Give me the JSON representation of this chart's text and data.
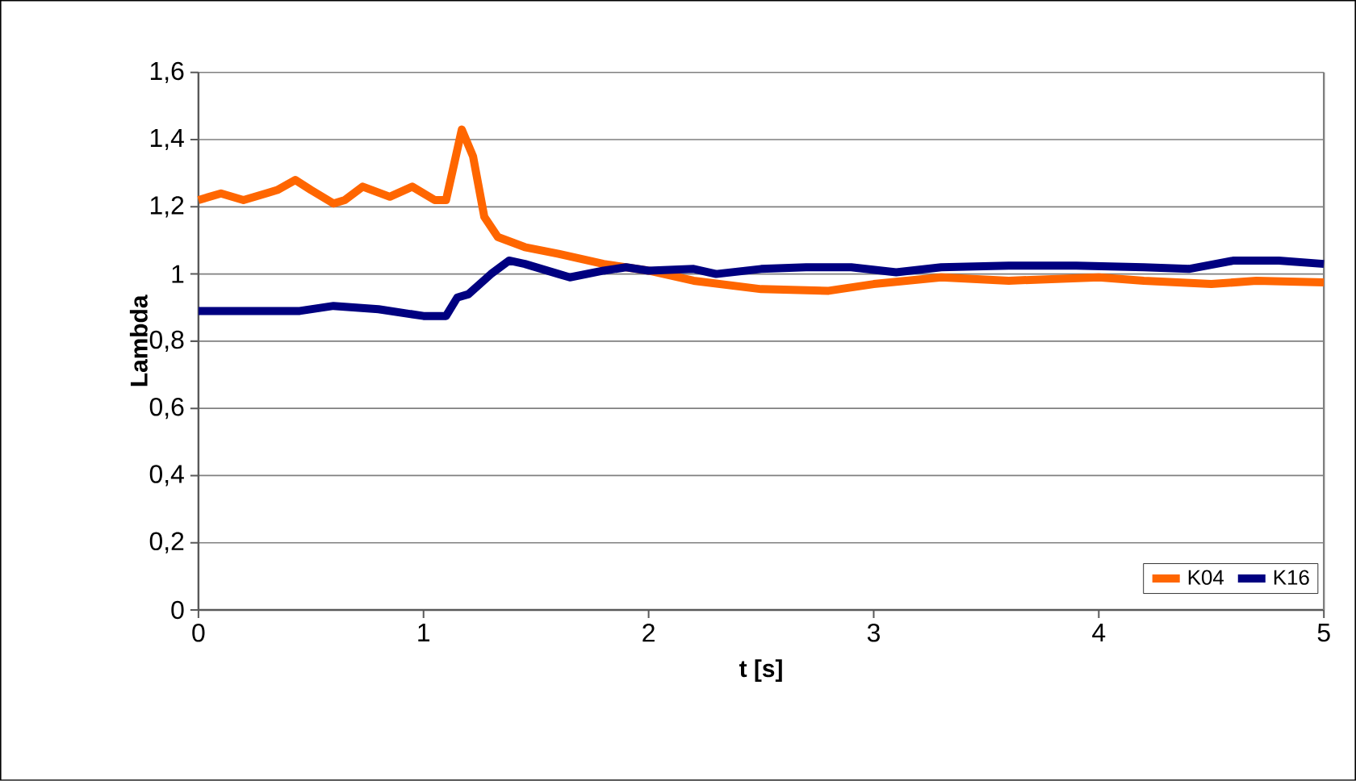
{
  "chart_data": {
    "type": "line",
    "xlabel": "t [s]",
    "ylabel": "Lambda",
    "xlim": [
      0,
      5
    ],
    "xticks": [
      0,
      1,
      2,
      3,
      4,
      5
    ],
    "ylim": [
      0,
      1.6
    ],
    "yticks": [
      0,
      {
        "value": 0.2,
        "label": "0,2"
      },
      {
        "value": 0.4,
        "label": "0,4"
      },
      {
        "value": 0.6,
        "label": "0,6"
      },
      {
        "value": 0.8,
        "label": "0,8"
      },
      1,
      {
        "value": 1.2,
        "label": "1,2"
      },
      {
        "value": 1.4,
        "label": "1,4"
      },
      {
        "value": 1.6,
        "label": "1,6"
      }
    ],
    "grid": "y",
    "legend": "bottom right",
    "marker": "none",
    "line_style": "solid",
    "series": [
      {
        "name": "K04",
        "color": "#ff6600",
        "x": [
          0,
          0.1,
          0.2,
          0.3,
          0.35,
          0.43,
          0.5,
          0.6,
          0.65,
          0.73,
          0.85,
          0.95,
          1.05,
          1.1,
          1.17,
          1.22,
          1.27,
          1.33,
          1.45,
          1.6,
          1.8,
          2.0,
          2.2,
          2.5,
          2.8,
          3.0,
          3.3,
          3.6,
          4.0,
          4.2,
          4.5,
          4.7,
          5.0
        ],
        "values": [
          1.22,
          1.24,
          1.22,
          1.24,
          1.25,
          1.28,
          1.25,
          1.21,
          1.22,
          1.26,
          1.23,
          1.26,
          1.22,
          1.22,
          1.43,
          1.35,
          1.17,
          1.11,
          1.08,
          1.06,
          1.03,
          1.01,
          0.98,
          0.955,
          0.95,
          0.97,
          0.99,
          0.98,
          0.99,
          0.98,
          0.97,
          0.98,
          0.975
        ]
      },
      {
        "name": "K16",
        "color": "#000080",
        "x": [
          0,
          0.3,
          0.45,
          0.6,
          0.8,
          1.0,
          1.1,
          1.15,
          1.2,
          1.3,
          1.38,
          1.45,
          1.6,
          1.65,
          1.8,
          1.9,
          2.0,
          2.2,
          2.3,
          2.5,
          2.7,
          2.9,
          3.1,
          3.3,
          3.6,
          3.9,
          4.2,
          4.4,
          4.6,
          4.8,
          5.0
        ],
        "values": [
          0.89,
          0.89,
          0.89,
          0.905,
          0.895,
          0.875,
          0.875,
          0.93,
          0.94,
          1.0,
          1.04,
          1.03,
          1.0,
          0.99,
          1.01,
          1.02,
          1.01,
          1.015,
          1.0,
          1.015,
          1.02,
          1.02,
          1.005,
          1.02,
          1.025,
          1.025,
          1.02,
          1.015,
          1.04,
          1.04,
          1.03
        ]
      }
    ]
  }
}
